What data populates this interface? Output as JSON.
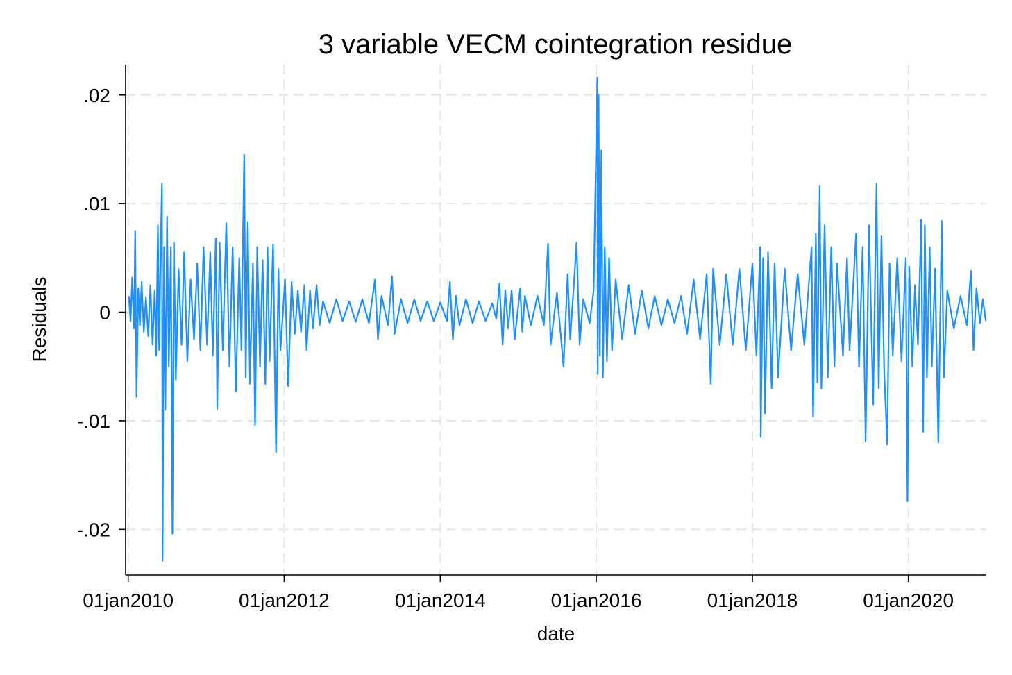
{
  "chart_data": {
    "type": "line",
    "title": "3 variable VECM cointegration residue",
    "xlabel": "date",
    "ylabel": "Residuals",
    "x_range": [
      "2009-12-20",
      "2020-12-31"
    ],
    "ylim": [
      -0.0242,
      0.0228
    ],
    "y_ticks": [
      {
        "value": 0.02,
        "label": ".02"
      },
      {
        "value": 0.01,
        "label": ".01"
      },
      {
        "value": 0,
        "label": "0"
      },
      {
        "value": -0.01,
        "label": "-.01"
      },
      {
        "value": -0.02,
        "label": "-.02"
      }
    ],
    "x_ticks": [
      {
        "value": "2010-01-01",
        "label": "01jan2010"
      },
      {
        "value": "2012-01-01",
        "label": "01jan2012"
      },
      {
        "value": "2014-01-01",
        "label": "01jan2014"
      },
      {
        "value": "2016-01-01",
        "label": "01jan2016"
      },
      {
        "value": "2018-01-01",
        "label": "01jan2018"
      },
      {
        "value": "2020-01-01",
        "label": "01jan2020"
      }
    ],
    "grid": true,
    "line_color": "#1e90ff",
    "series": [
      {
        "points": [
          [
            "2010-01-04",
            0.0015
          ],
          [
            "2010-01-12",
            -0.0008
          ],
          [
            "2010-01-20",
            0.0032
          ],
          [
            "2010-01-28",
            -0.0015
          ],
          [
            "2010-02-03",
            0.0075
          ],
          [
            "2010-02-09",
            -0.0078
          ],
          [
            "2010-02-17",
            0.0022
          ],
          [
            "2010-02-25",
            -0.0012
          ],
          [
            "2010-03-05",
            0.0028
          ],
          [
            "2010-03-15",
            -0.0018
          ],
          [
            "2010-03-25",
            0.0014
          ],
          [
            "2010-04-05",
            -0.0022
          ],
          [
            "2010-04-15",
            0.0025
          ],
          [
            "2010-04-25",
            -0.003
          ],
          [
            "2010-05-05",
            0.002
          ],
          [
            "2010-05-12",
            -0.004
          ],
          [
            "2010-05-20",
            0.008
          ],
          [
            "2010-05-26",
            -0.0035
          ],
          [
            "2010-06-01",
            0.005
          ],
          [
            "2010-06-08",
            0.0118
          ],
          [
            "2010-06-11",
            -0.0229
          ],
          [
            "2010-06-18",
            0.006
          ],
          [
            "2010-06-24",
            -0.009
          ],
          [
            "2010-07-02",
            0.0088
          ],
          [
            "2010-07-10",
            -0.005
          ],
          [
            "2010-07-20",
            0.006
          ],
          [
            "2010-07-27",
            -0.0204
          ],
          [
            "2010-08-03",
            0.0064
          ],
          [
            "2010-08-12",
            -0.0062
          ],
          [
            "2010-08-25",
            0.004
          ],
          [
            "2010-09-08",
            -0.003
          ],
          [
            "2010-09-20",
            0.0055
          ],
          [
            "2010-10-05",
            -0.0045
          ],
          [
            "2010-10-20",
            0.003
          ],
          [
            "2010-11-05",
            -0.0025
          ],
          [
            "2010-11-20",
            0.0045
          ],
          [
            "2010-12-05",
            -0.0035
          ],
          [
            "2010-12-20",
            0.006
          ],
          [
            "2011-01-05",
            -0.003
          ],
          [
            "2011-01-20",
            0.0055
          ],
          [
            "2011-02-01",
            -0.004
          ],
          [
            "2011-02-15",
            0.0068
          ],
          [
            "2011-02-22",
            -0.0089
          ],
          [
            "2011-03-05",
            0.0064
          ],
          [
            "2011-03-20",
            -0.0035
          ],
          [
            "2011-04-05",
            0.0082
          ],
          [
            "2011-04-20",
            -0.005
          ],
          [
            "2011-05-05",
            0.006
          ],
          [
            "2011-05-20",
            -0.0073
          ],
          [
            "2011-06-05",
            0.005
          ],
          [
            "2011-06-15",
            -0.0035
          ],
          [
            "2011-06-28",
            0.0145
          ],
          [
            "2011-07-05",
            -0.006
          ],
          [
            "2011-07-15",
            0.0083
          ],
          [
            "2011-07-25",
            -0.0066
          ],
          [
            "2011-08-08",
            0.0045
          ],
          [
            "2011-08-18",
            -0.0104
          ],
          [
            "2011-08-28",
            0.006
          ],
          [
            "2011-09-10",
            -0.005
          ],
          [
            "2011-09-22",
            0.0048
          ],
          [
            "2011-10-05",
            -0.0066
          ],
          [
            "2011-10-15",
            0.006
          ],
          [
            "2011-10-25",
            -0.0045
          ],
          [
            "2011-11-10",
            0.0062
          ],
          [
            "2011-11-24",
            -0.0129
          ],
          [
            "2011-12-05",
            0.004
          ],
          [
            "2011-12-15",
            -0.0035
          ],
          [
            "2012-01-05",
            0.003
          ],
          [
            "2012-01-20",
            -0.0068
          ],
          [
            "2012-02-05",
            0.0028
          ],
          [
            "2012-02-20",
            -0.002
          ],
          [
            "2012-03-05",
            0.002
          ],
          [
            "2012-03-20",
            -0.0018
          ],
          [
            "2012-04-05",
            0.0025
          ],
          [
            "2012-04-15",
            -0.0035
          ],
          [
            "2012-05-01",
            0.002
          ],
          [
            "2012-05-15",
            -0.0015
          ],
          [
            "2012-06-01",
            0.0025
          ],
          [
            "2012-06-15",
            -0.0012
          ],
          [
            "2012-07-01",
            0.001
          ],
          [
            "2012-08-01",
            -0.001
          ],
          [
            "2012-09-01",
            0.0012
          ],
          [
            "2012-10-01",
            -0.0008
          ],
          [
            "2012-11-01",
            0.001
          ],
          [
            "2012-12-01",
            -0.0009
          ],
          [
            "2013-01-01",
            0.0012
          ],
          [
            "2013-02-01",
            -0.001
          ],
          [
            "2013-03-01",
            0.003
          ],
          [
            "2013-03-15",
            -0.0025
          ],
          [
            "2013-04-01",
            0.0015
          ],
          [
            "2013-05-01",
            -0.0012
          ],
          [
            "2013-05-20",
            0.0033
          ],
          [
            "2013-06-01",
            -0.002
          ],
          [
            "2013-07-01",
            0.0012
          ],
          [
            "2013-08-01",
            -0.001
          ],
          [
            "2013-09-01",
            0.0012
          ],
          [
            "2013-10-01",
            -0.0008
          ],
          [
            "2013-11-01",
            0.001
          ],
          [
            "2013-12-01",
            -0.0008
          ],
          [
            "2014-01-01",
            0.0009
          ],
          [
            "2014-02-01",
            -0.0008
          ],
          [
            "2014-02-15",
            0.0028
          ],
          [
            "2014-03-01",
            -0.0025
          ],
          [
            "2014-03-15",
            0.0015
          ],
          [
            "2014-04-01",
            -0.0012
          ],
          [
            "2014-05-01",
            0.0012
          ],
          [
            "2014-06-01",
            -0.001
          ],
          [
            "2014-07-01",
            0.001
          ],
          [
            "2014-08-01",
            -0.0008
          ],
          [
            "2014-09-01",
            0.0008
          ],
          [
            "2014-09-20",
            -0.0006
          ],
          [
            "2014-10-05",
            0.0026
          ],
          [
            "2014-10-20",
            -0.003
          ],
          [
            "2014-11-01",
            0.002
          ],
          [
            "2014-11-15",
            -0.0015
          ],
          [
            "2014-12-01",
            0.002
          ],
          [
            "2014-12-15",
            -0.0025
          ],
          [
            "2015-01-10",
            0.0022
          ],
          [
            "2015-01-20",
            -0.0018
          ],
          [
            "2015-02-01",
            0.0015
          ],
          [
            "2015-03-01",
            -0.0012
          ],
          [
            "2015-04-01",
            0.0015
          ],
          [
            "2015-05-01",
            -0.0012
          ],
          [
            "2015-05-20",
            0.0063
          ],
          [
            "2015-06-01",
            -0.003
          ],
          [
            "2015-07-01",
            0.0018
          ],
          [
            "2015-08-01",
            -0.005
          ],
          [
            "2015-08-20",
            0.0035
          ],
          [
            "2015-09-01",
            -0.0025
          ],
          [
            "2015-10-01",
            0.0064
          ],
          [
            "2015-10-15",
            -0.003
          ],
          [
            "2015-11-01",
            0.0012
          ],
          [
            "2015-12-01",
            -0.001
          ],
          [
            "2015-12-20",
            0.002
          ],
          [
            "2016-01-06",
            0.0216
          ],
          [
            "2016-01-08",
            -0.0057
          ],
          [
            "2016-01-12",
            0.02
          ],
          [
            "2016-01-18",
            -0.004
          ],
          [
            "2016-01-25",
            0.0149
          ],
          [
            "2016-02-01",
            -0.006
          ],
          [
            "2016-02-10",
            0.006
          ],
          [
            "2016-02-20",
            -0.0045
          ],
          [
            "2016-03-01",
            0.005
          ],
          [
            "2016-03-15",
            -0.0035
          ],
          [
            "2016-04-01",
            0.003
          ],
          [
            "2016-05-01",
            -0.0025
          ],
          [
            "2016-06-01",
            0.0025
          ],
          [
            "2016-07-01",
            -0.002
          ],
          [
            "2016-08-01",
            0.002
          ],
          [
            "2016-09-01",
            -0.0015
          ],
          [
            "2016-10-01",
            0.0015
          ],
          [
            "2016-11-01",
            -0.0012
          ],
          [
            "2016-12-01",
            0.0012
          ],
          [
            "2017-01-01",
            -0.001
          ],
          [
            "2017-02-01",
            0.0015
          ],
          [
            "2017-03-01",
            -0.002
          ],
          [
            "2017-04-01",
            0.003
          ],
          [
            "2017-05-01",
            -0.0025
          ],
          [
            "2017-06-01",
            0.0035
          ],
          [
            "2017-06-20",
            -0.0066
          ],
          [
            "2017-07-01",
            0.004
          ],
          [
            "2017-08-01",
            -0.003
          ],
          [
            "2017-09-01",
            0.0035
          ],
          [
            "2017-10-01",
            -0.003
          ],
          [
            "2017-11-01",
            0.004
          ],
          [
            "2017-12-01",
            -0.0035
          ],
          [
            "2018-01-01",
            0.0045
          ],
          [
            "2018-01-20",
            -0.004
          ],
          [
            "2018-02-06",
            0.006
          ],
          [
            "2018-02-09",
            -0.0115
          ],
          [
            "2018-02-20",
            0.005
          ],
          [
            "2018-03-01",
            -0.0093
          ],
          [
            "2018-03-15",
            0.0055
          ],
          [
            "2018-04-01",
            -0.007
          ],
          [
            "2018-04-15",
            0.0045
          ],
          [
            "2018-05-01",
            -0.006
          ],
          [
            "2018-06-01",
            0.004
          ],
          [
            "2018-07-01",
            -0.0035
          ],
          [
            "2018-08-01",
            0.0035
          ],
          [
            "2018-09-01",
            -0.003
          ],
          [
            "2018-10-05",
            0.006
          ],
          [
            "2018-10-12",
            -0.0096
          ],
          [
            "2018-10-25",
            0.0072
          ],
          [
            "2018-11-01",
            -0.0065
          ],
          [
            "2018-11-12",
            0.0116
          ],
          [
            "2018-11-20",
            -0.007
          ],
          [
            "2018-12-05",
            0.008
          ],
          [
            "2018-12-20",
            -0.006
          ],
          [
            "2019-01-05",
            0.006
          ],
          [
            "2019-01-20",
            -0.005
          ],
          [
            "2019-02-01",
            0.0045
          ],
          [
            "2019-03-01",
            -0.004
          ],
          [
            "2019-03-20",
            0.005
          ],
          [
            "2019-04-01",
            -0.0035
          ],
          [
            "2019-05-01",
            0.0072
          ],
          [
            "2019-05-15",
            -0.005
          ],
          [
            "2019-06-01",
            0.006
          ],
          [
            "2019-06-15",
            -0.0119
          ],
          [
            "2019-07-01",
            0.008
          ],
          [
            "2019-07-20",
            -0.0085
          ],
          [
            "2019-08-05",
            0.0118
          ],
          [
            "2019-08-15",
            -0.007
          ],
          [
            "2019-08-28",
            0.007
          ],
          [
            "2019-09-10",
            -0.0055
          ],
          [
            "2019-09-24",
            -0.0122
          ],
          [
            "2019-10-05",
            0.0045
          ],
          [
            "2019-10-20",
            -0.004
          ],
          [
            "2019-11-10",
            0.005
          ],
          [
            "2019-11-30",
            -0.0045
          ],
          [
            "2019-12-20",
            0.005
          ],
          [
            "2019-12-28",
            -0.0174
          ],
          [
            "2020-01-05",
            0.0042
          ],
          [
            "2020-01-20",
            -0.005
          ],
          [
            "2020-02-01",
            0.0025
          ],
          [
            "2020-02-15",
            -0.003
          ],
          [
            "2020-03-01",
            0.0085
          ],
          [
            "2020-03-10",
            -0.011
          ],
          [
            "2020-03-18",
            0.008
          ],
          [
            "2020-03-28",
            -0.006
          ],
          [
            "2020-04-10",
            0.006
          ],
          [
            "2020-04-20",
            -0.005
          ],
          [
            "2020-05-05",
            0.004
          ],
          [
            "2020-05-20",
            -0.012
          ],
          [
            "2020-06-05",
            0.0084
          ],
          [
            "2020-06-15",
            -0.006
          ],
          [
            "2020-07-01",
            0.002
          ],
          [
            "2020-08-01",
            -0.0015
          ],
          [
            "2020-09-01",
            0.0015
          ],
          [
            "2020-10-01",
            -0.0012
          ],
          [
            "2020-10-20",
            0.0038
          ],
          [
            "2020-11-01",
            -0.0035
          ],
          [
            "2020-11-15",
            0.0022
          ],
          [
            "2020-12-01",
            -0.001
          ],
          [
            "2020-12-15",
            0.0012
          ],
          [
            "2020-12-28",
            -0.0008
          ]
        ]
      }
    ]
  }
}
